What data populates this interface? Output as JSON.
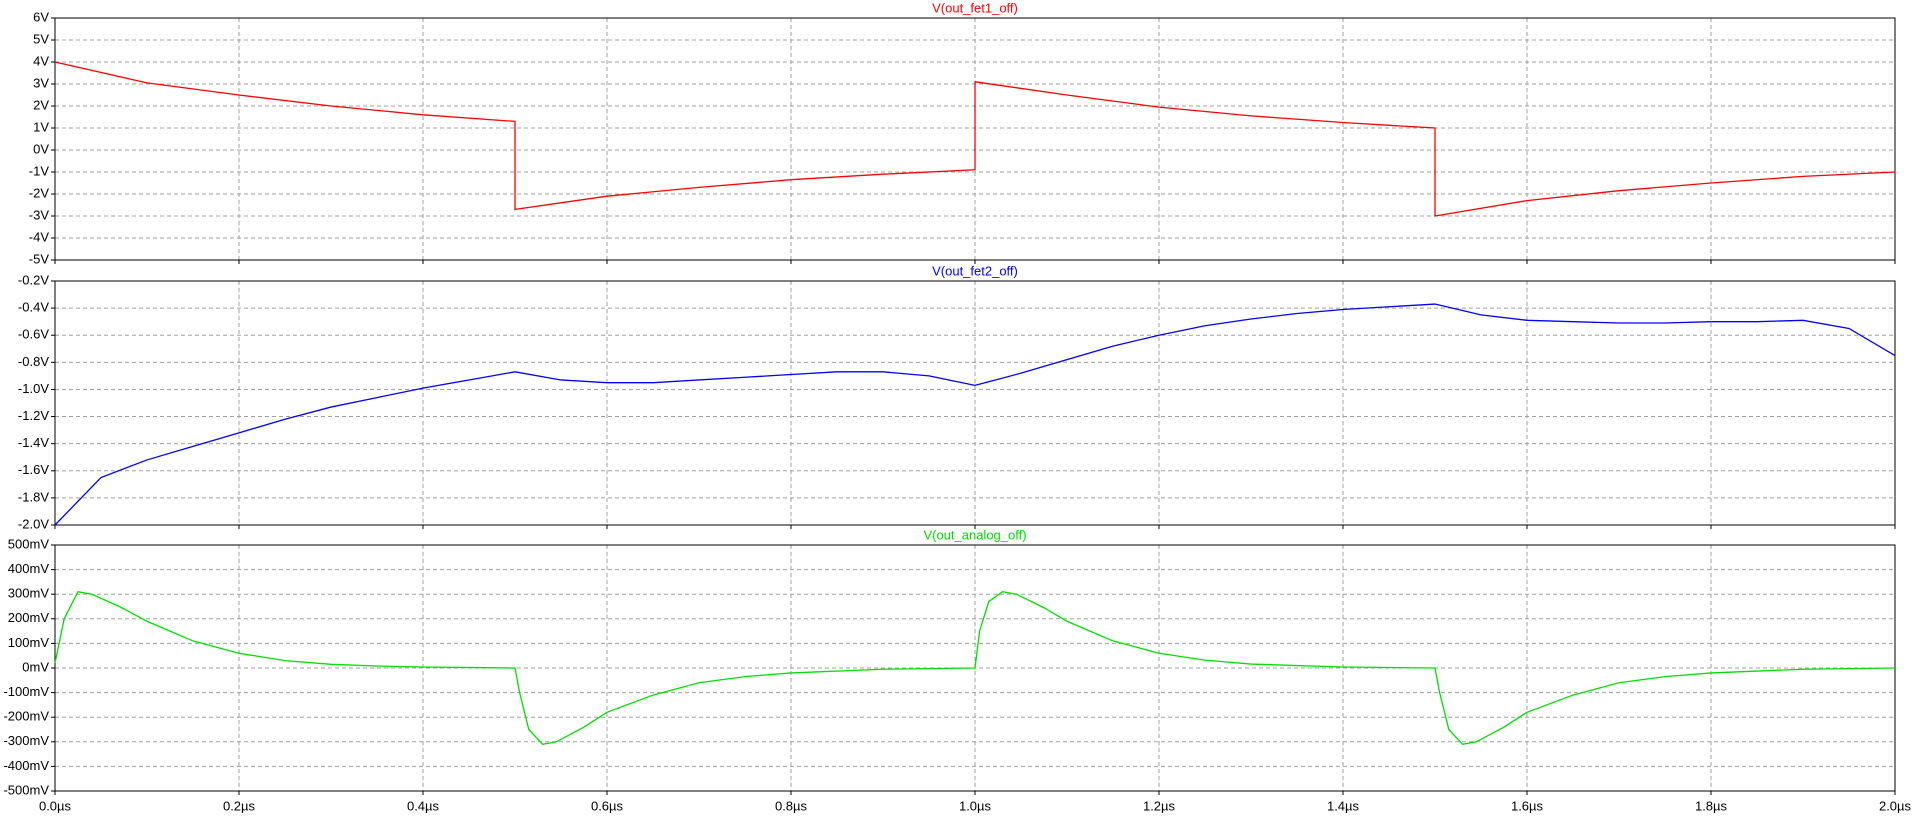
{
  "chart_data": [
    {
      "type": "line",
      "title": "V(out_fet1_off)",
      "xlim": [
        0,
        2
      ],
      "ylim": [
        -5,
        6
      ],
      "yticks": [
        {
          "value": -5,
          "label": "-5V"
        },
        {
          "value": -4,
          "label": "-4V"
        },
        {
          "value": -3,
          "label": "-3V"
        },
        {
          "value": -2,
          "label": "-2V"
        },
        {
          "value": -1,
          "label": "-1V"
        },
        {
          "value": 0,
          "label": "0V"
        },
        {
          "value": 1,
          "label": "1V"
        },
        {
          "value": 2,
          "label": "2V"
        },
        {
          "value": 3,
          "label": "3V"
        },
        {
          "value": 4,
          "label": "4V"
        },
        {
          "value": 5,
          "label": "5V"
        },
        {
          "value": 6,
          "label": "6V"
        }
      ],
      "grid": true,
      "x": [
        0,
        0.1,
        0.2,
        0.3,
        0.4,
        0.5,
        0.5,
        0.6,
        0.7,
        0.8,
        0.9,
        1.0,
        1.0,
        1.1,
        1.2,
        1.3,
        1.4,
        1.5,
        1.5,
        1.6,
        1.7,
        1.8,
        1.9,
        2.0
      ],
      "series": [
        {
          "name": "V(out_fet1_off)",
          "color": "#ff0000",
          "values": [
            4.0,
            3.05,
            2.5,
            2.0,
            1.6,
            1.3,
            -2.7,
            -2.1,
            -1.7,
            -1.35,
            -1.1,
            -0.9,
            3.1,
            2.5,
            1.95,
            1.55,
            1.25,
            1.0,
            -3.0,
            -2.3,
            -1.85,
            -1.5,
            -1.2,
            -1.0
          ]
        }
      ]
    },
    {
      "type": "line",
      "title": "V(out_fet2_off)",
      "xlim": [
        0,
        2
      ],
      "ylim": [
        -2.0,
        -0.2
      ],
      "yticks": [
        {
          "value": -2.0,
          "label": "-2.0V"
        },
        {
          "value": -1.8,
          "label": "-1.8V"
        },
        {
          "value": -1.6,
          "label": "-1.6V"
        },
        {
          "value": -1.4,
          "label": "-1.4V"
        },
        {
          "value": -1.2,
          "label": "-1.2V"
        },
        {
          "value": -1.0,
          "label": "-1.0V"
        },
        {
          "value": -0.8,
          "label": "-0.8V"
        },
        {
          "value": -0.6,
          "label": "-0.6V"
        },
        {
          "value": -0.4,
          "label": "-0.4V"
        },
        {
          "value": -0.2,
          "label": "-0.2V"
        }
      ],
      "grid": true,
      "x": [
        0,
        0.05,
        0.1,
        0.15,
        0.2,
        0.25,
        0.3,
        0.35,
        0.4,
        0.45,
        0.5,
        0.55,
        0.6,
        0.65,
        0.7,
        0.75,
        0.8,
        0.85,
        0.9,
        0.95,
        1.0,
        1.05,
        1.1,
        1.15,
        1.2,
        1.25,
        1.3,
        1.35,
        1.4,
        1.45,
        1.5,
        1.55,
        1.6,
        1.65,
        1.7,
        1.75,
        1.8,
        1.85,
        1.9,
        1.95,
        2.0
      ],
      "series": [
        {
          "name": "V(out_fet2_off)",
          "color": "#0000ff",
          "values": [
            -2.0,
            -1.65,
            -1.52,
            -1.42,
            -1.32,
            -1.22,
            -1.13,
            -1.06,
            -0.99,
            -0.93,
            -0.87,
            -0.93,
            -0.95,
            -0.95,
            -0.93,
            -0.91,
            -0.89,
            -0.87,
            -0.87,
            -0.9,
            -0.97,
            -0.88,
            -0.78,
            -0.68,
            -0.6,
            -0.53,
            -0.48,
            -0.44,
            -0.41,
            -0.39,
            -0.37,
            -0.45,
            -0.49,
            -0.5,
            -0.51,
            -0.51,
            -0.5,
            -0.5,
            -0.49,
            -0.55,
            -0.75
          ]
        }
      ]
    },
    {
      "type": "line",
      "title": "V(out_analog_off)",
      "xlim": [
        0,
        2
      ],
      "ylim": [
        -500,
        500
      ],
      "yticks": [
        {
          "value": -500,
          "label": "-500mV"
        },
        {
          "value": -400,
          "label": "-400mV"
        },
        {
          "value": -300,
          "label": "-300mV"
        },
        {
          "value": -200,
          "label": "-200mV"
        },
        {
          "value": -100,
          "label": "-100mV"
        },
        {
          "value": 0,
          "label": "0mV"
        },
        {
          "value": 100,
          "label": "100mV"
        },
        {
          "value": 200,
          "label": "200mV"
        },
        {
          "value": 300,
          "label": "300mV"
        },
        {
          "value": 400,
          "label": "400mV"
        },
        {
          "value": 500,
          "label": "500mV"
        }
      ],
      "xticks": [
        {
          "value": 0,
          "label": "0.0µs"
        },
        {
          "value": 0.2,
          "label": "0.2µs"
        },
        {
          "value": 0.4,
          "label": "0.4µs"
        },
        {
          "value": 0.6,
          "label": "0.6µs"
        },
        {
          "value": 0.8,
          "label": "0.8µs"
        },
        {
          "value": 1.0,
          "label": "1.0µs"
        },
        {
          "value": 1.2,
          "label": "1.2µs"
        },
        {
          "value": 1.4,
          "label": "1.4µs"
        },
        {
          "value": 1.6,
          "label": "1.6µs"
        },
        {
          "value": 1.8,
          "label": "1.8µs"
        },
        {
          "value": 2.0,
          "label": "2.0µs"
        }
      ],
      "grid": true,
      "x": [
        0,
        0.01,
        0.025,
        0.04,
        0.07,
        0.1,
        0.15,
        0.2,
        0.25,
        0.3,
        0.35,
        0.4,
        0.5,
        0.505,
        0.515,
        0.53,
        0.545,
        0.575,
        0.6,
        0.65,
        0.7,
        0.75,
        0.8,
        0.9,
        1.0,
        1.005,
        1.015,
        1.03,
        1.045,
        1.075,
        1.1,
        1.15,
        1.2,
        1.25,
        1.3,
        1.4,
        1.5,
        1.505,
        1.515,
        1.53,
        1.545,
        1.575,
        1.6,
        1.65,
        1.7,
        1.75,
        1.8,
        1.9,
        2.0
      ],
      "series": [
        {
          "name": "V(out_analog_off)",
          "color": "#00e000",
          "values": [
            20,
            200,
            310,
            300,
            250,
            190,
            110,
            60,
            30,
            15,
            8,
            4,
            0,
            -100,
            -250,
            -310,
            -300,
            -240,
            -180,
            -110,
            -60,
            -35,
            -20,
            -5,
            0,
            150,
            270,
            310,
            300,
            245,
            190,
            110,
            60,
            32,
            16,
            4,
            0,
            -100,
            -250,
            -310,
            -300,
            -240,
            -180,
            -110,
            -60,
            -35,
            -20,
            -5,
            0
          ]
        }
      ]
    }
  ]
}
